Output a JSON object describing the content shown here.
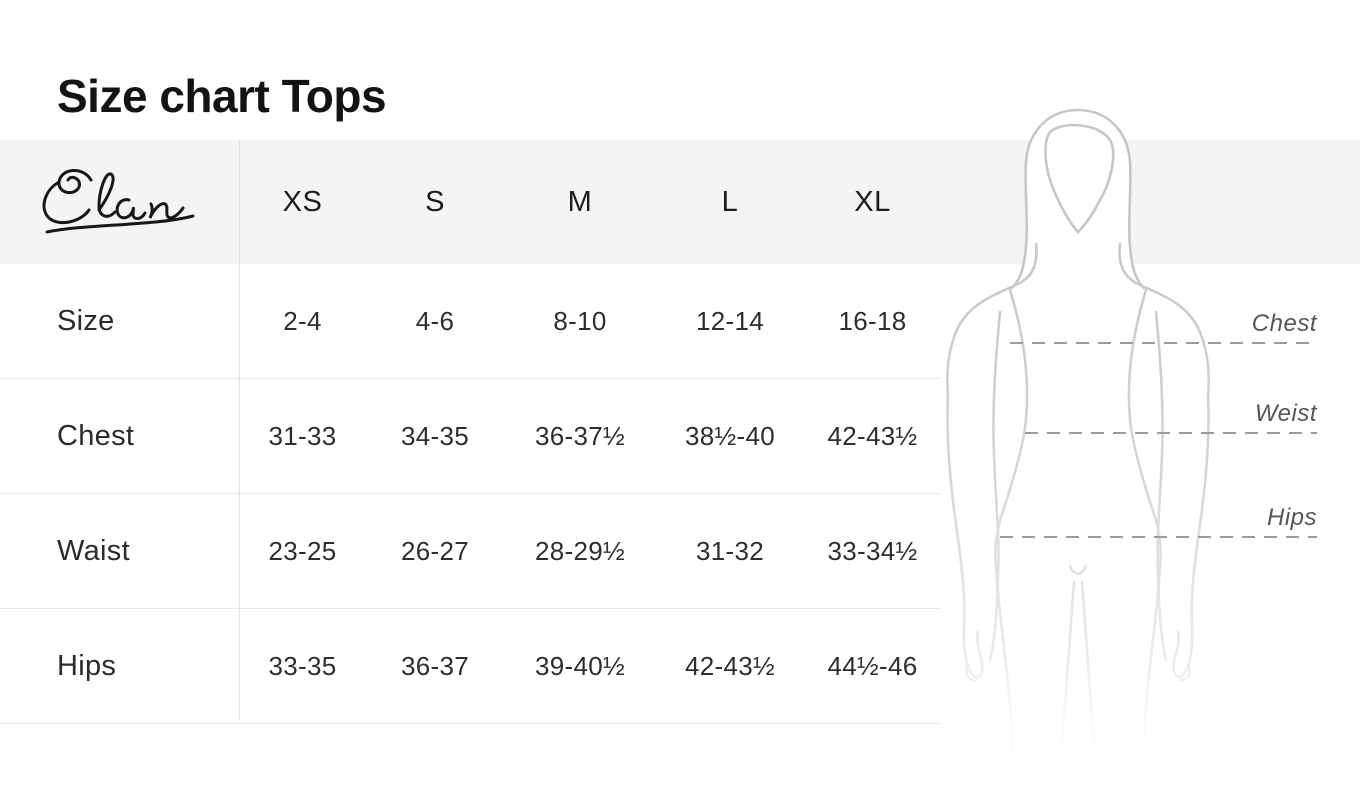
{
  "page": {
    "title": "Size chart Tops"
  },
  "brand": {
    "name": "Elan"
  },
  "table": {
    "columns": [
      "XS",
      "S",
      "M",
      "L",
      "XL"
    ],
    "rows": [
      {
        "label": "Size",
        "values": [
          "2-4",
          "4-6",
          "8-10",
          "12-14",
          "16-18"
        ]
      },
      {
        "label": "Chest",
        "values": [
          "31-33",
          "34-35",
          "36-37½",
          "38½-40",
          "42-43½"
        ]
      },
      {
        "label": "Waist",
        "values": [
          "23-25",
          "26-27",
          "28-29½",
          "31-32",
          "33-34½"
        ]
      },
      {
        "label": "Hips",
        "values": [
          "33-35",
          "36-37",
          "39-40½",
          "42-43½",
          "44½-46"
        ]
      }
    ]
  },
  "figure": {
    "labels": [
      {
        "key": "chest",
        "text": "Chest"
      },
      {
        "key": "weist",
        "text": "Weist"
      },
      {
        "key": "hips",
        "text": "Hips"
      }
    ]
  },
  "colors": {
    "title_text": "#131313",
    "band_bg": "#f4f4f4",
    "table_text": "#2e2e2e",
    "row_border": "#e9e9e9",
    "figure_outline": "#c8c8c8",
    "dashed_line": "#9b9b9b",
    "label_text": "#565656"
  },
  "chart_data": {
    "type": "table",
    "title": "Size chart Tops",
    "columns": [
      "XS",
      "S",
      "M",
      "L",
      "XL"
    ],
    "row_headers": [
      "Size",
      "Chest",
      "Waist",
      "Hips"
    ],
    "rows": [
      [
        "2-4",
        "4-6",
        "8-10",
        "12-14",
        "16-18"
      ],
      [
        "31-33",
        "34-35",
        "36-37½",
        "38½-40",
        "42-43½"
      ],
      [
        "23-25",
        "26-27",
        "28-29½",
        "31-32",
        "33-34½"
      ],
      [
        "33-35",
        "36-37",
        "39-40½",
        "42-43½",
        "44½-46"
      ]
    ],
    "annotations": [
      "Chest",
      "Weist",
      "Hips"
    ]
  }
}
